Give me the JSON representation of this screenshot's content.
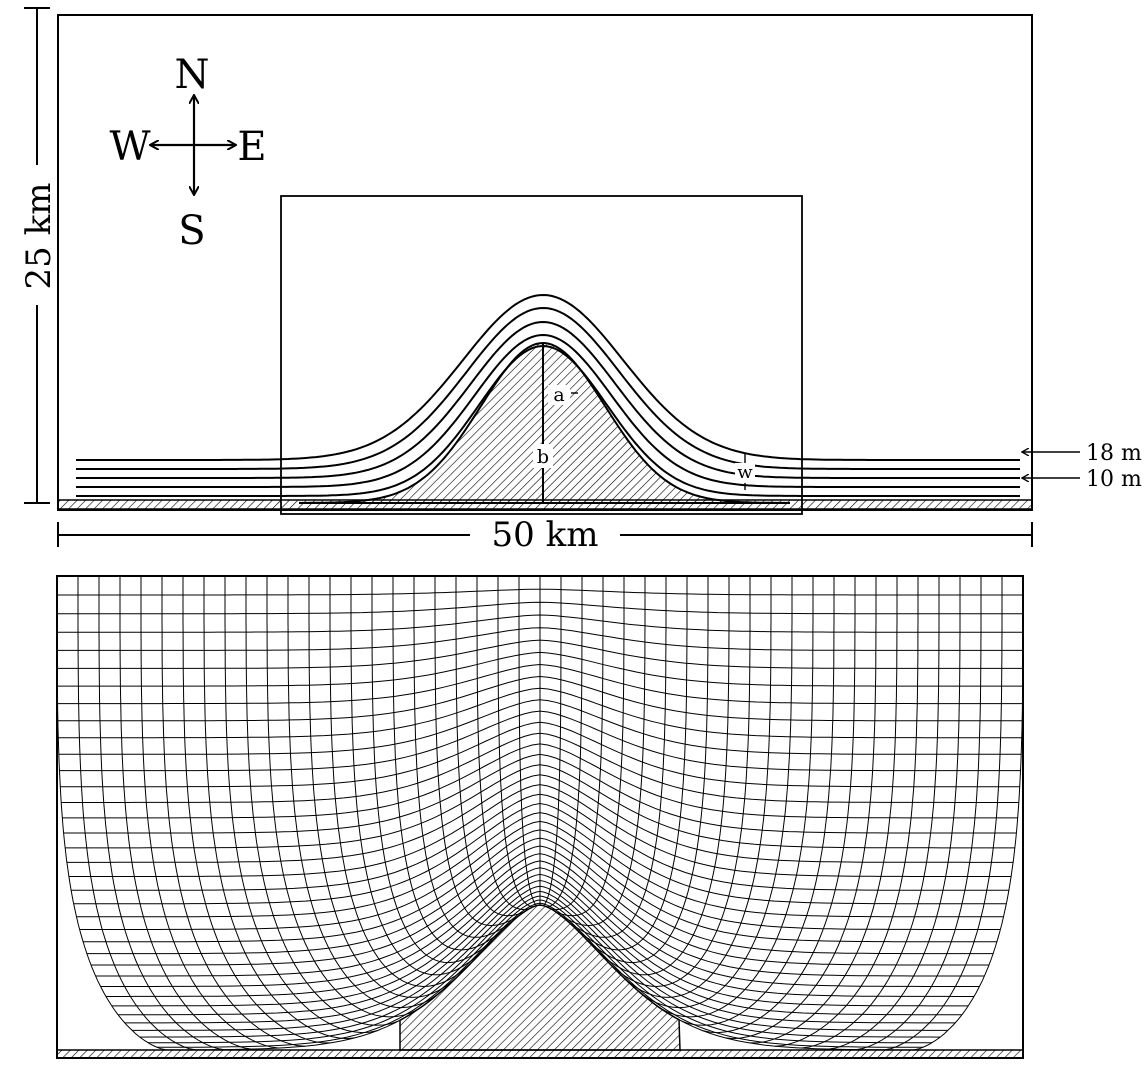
{
  "compass": {
    "north": "N",
    "south": "S",
    "east": "E",
    "west": "W"
  },
  "dimensions": {
    "height_label": "25 km",
    "width_label": "50 km"
  },
  "markers": {
    "a": "a",
    "b": "b",
    "w": "w"
  },
  "depths": {
    "upper": "18 m",
    "lower": "10 m"
  },
  "colors": {
    "ink": "#000000",
    "background": "#ffffff"
  }
}
